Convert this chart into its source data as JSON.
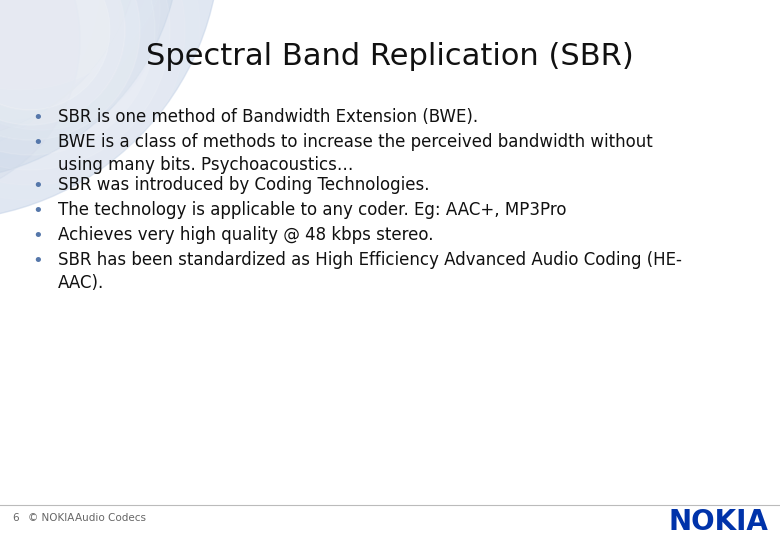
{
  "title": "Spectral Band Replication (SBR)",
  "title_fontsize": 22,
  "title_color": "#111111",
  "background_color": "#ffffff",
  "bullet_points": [
    "SBR is one method of Bandwidth Extension (BWE).",
    "BWE is a class of methods to increase the perceived bandwidth without\nusing many bits. Psychoacoustics…",
    "SBR was introduced by Coding Technologies.",
    "The technology is applicable to any coder. Eg: AAC+, MP3Pro",
    "Achieves very high quality @ 48 kbps stereo.",
    "SBR has been standardized as High Efficiency Advanced Audio Coding (HE-\nAAC)."
  ],
  "bullet_fontsize": 12,
  "bullet_color": "#111111",
  "bullet_dot_color": "#5577aa",
  "footer_number": "6",
  "footer_copy": "© NOKIA",
  "footer_title": "Audio Codecs",
  "footer_fontsize": 7.5,
  "footer_color": "#666666",
  "nokia_text": "NOKIA",
  "nokia_color": "#0033aa",
  "nokia_fontsize": 20,
  "gradient_color1": "#c8d4e8",
  "gradient_color2": "#dce6f4",
  "gradient_color3": "#eef2fa"
}
